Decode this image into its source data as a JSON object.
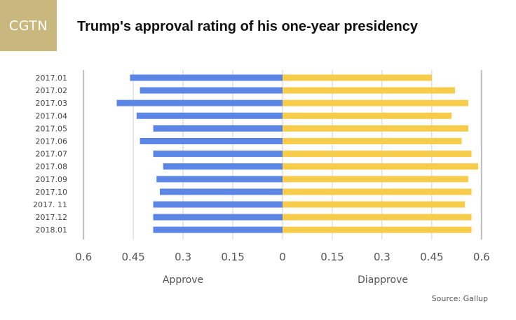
{
  "logo": {
    "text": "CGTN"
  },
  "title": "Trump's approval rating of his one-year presidency",
  "source": "Source: Gallup",
  "colors": {
    "approve": "#5b86e5",
    "disapprove": "#f6cc4a",
    "grid": "#d0d0d0",
    "logo_bg": "#c9b87e"
  },
  "chart_data": {
    "type": "bar",
    "orientation": "horizontal-diverging",
    "title": "Trump's approval rating of his one-year presidency",
    "categories": [
      "2017.01",
      "2017.02",
      "2017.03",
      "2017.04",
      "2017.05",
      "2017.06",
      "2017.07",
      "2017.08",
      "2017.09",
      "2017.10",
      "2017. 11",
      "2017.12",
      "2018.01"
    ],
    "series": [
      {
        "name": "Approve",
        "side": "left",
        "color": "#5b86e5",
        "values": [
          0.46,
          0.43,
          0.5,
          0.44,
          0.39,
          0.43,
          0.39,
          0.36,
          0.38,
          0.37,
          0.39,
          0.39,
          0.39
        ]
      },
      {
        "name": "Diapprove",
        "side": "right",
        "color": "#f6cc4a",
        "values": [
          0.45,
          0.52,
          0.56,
          0.51,
          0.56,
          0.54,
          0.57,
          0.59,
          0.56,
          0.57,
          0.55,
          0.57,
          0.57
        ]
      }
    ],
    "x_ticks": [
      "0.6",
      "0.45",
      "0.3",
      "0.15",
      "0",
      "0.15",
      "0.3",
      "0.45",
      "0.6"
    ],
    "xlim": [
      -0.6,
      0.6
    ],
    "axis_labels": {
      "left": "Approve",
      "right": "Diapprove"
    },
    "grid": true,
    "legend": "none"
  }
}
